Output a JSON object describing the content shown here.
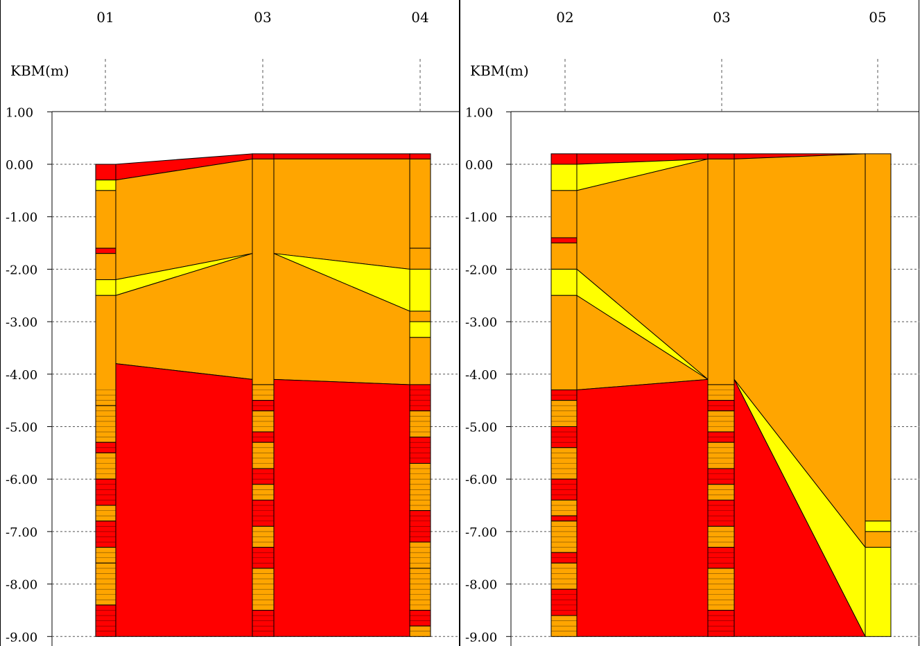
{
  "chart_data": [
    {
      "type": "geologic-cross-section",
      "ylabel": "KBM(m)",
      "yticks": [
        "1.00",
        "0.00",
        "-1.00",
        "-2.00",
        "-3.00",
        "-4.00",
        "-5.00",
        "-6.00",
        "-7.00",
        "-8.00",
        "-9.00"
      ],
      "ylim": [
        -9.0,
        1.0
      ],
      "boreholes": [
        {
          "label": "01",
          "top": 0.0,
          "layers": [
            [
              0.0,
              -0.3,
              "red"
            ],
            [
              -0.3,
              -0.5,
              "yellow"
            ],
            [
              -0.5,
              -1.6,
              "orange"
            ],
            [
              -1.6,
              -1.7,
              "red"
            ],
            [
              -1.7,
              -2.2,
              "orange"
            ],
            [
              -2.2,
              -2.5,
              "yellow"
            ],
            [
              -2.5,
              -4.6,
              "orange"
            ],
            [
              -4.6,
              -5.3,
              "orange"
            ],
            [
              -5.3,
              -5.5,
              "red"
            ],
            [
              -5.5,
              -6.0,
              "orange"
            ],
            [
              -6.0,
              -6.5,
              "red"
            ],
            [
              -6.5,
              -6.8,
              "orange"
            ],
            [
              -6.8,
              -7.3,
              "red"
            ],
            [
              -7.3,
              -7.6,
              "orange"
            ],
            [
              -7.6,
              -8.4,
              "orange"
            ],
            [
              -8.4,
              -9.0,
              "red"
            ]
          ]
        },
        {
          "label": "03",
          "top": 0.2,
          "layers": [
            [
              0.2,
              0.1,
              "red"
            ],
            [
              0.1,
              -4.2,
              "orange"
            ],
            [
              -4.2,
              -4.5,
              "orange"
            ],
            [
              -4.5,
              -4.7,
              "red"
            ],
            [
              -4.7,
              -5.1,
              "orange"
            ],
            [
              -5.1,
              -5.3,
              "red"
            ],
            [
              -5.3,
              -5.8,
              "orange"
            ],
            [
              -5.8,
              -6.1,
              "red"
            ],
            [
              -6.1,
              -6.4,
              "orange"
            ],
            [
              -6.4,
              -6.9,
              "red"
            ],
            [
              -6.9,
              -7.3,
              "orange"
            ],
            [
              -7.3,
              -7.7,
              "red"
            ],
            [
              -7.7,
              -8.5,
              "orange"
            ],
            [
              -8.5,
              -9.0,
              "red"
            ]
          ]
        },
        {
          "label": "04",
          "top": 0.2,
          "layers": [
            [
              0.2,
              0.1,
              "red"
            ],
            [
              0.1,
              -1.6,
              "orange"
            ],
            [
              -1.6,
              -2.0,
              "orange"
            ],
            [
              -2.0,
              -2.8,
              "yellow"
            ],
            [
              -2.8,
              -3.0,
              "orange"
            ],
            [
              -3.0,
              -3.3,
              "yellow"
            ],
            [
              -3.3,
              -4.2,
              "orange"
            ],
            [
              -4.2,
              -4.7,
              "red"
            ],
            [
              -4.7,
              -5.2,
              "orange"
            ],
            [
              -5.2,
              -5.7,
              "red"
            ],
            [
              -5.7,
              -6.6,
              "orange"
            ],
            [
              -6.6,
              -7.2,
              "red"
            ],
            [
              -7.2,
              -7.7,
              "orange"
            ],
            [
              -7.7,
              -8.5,
              "orange"
            ],
            [
              -8.5,
              -8.8,
              "red"
            ],
            [
              -8.8,
              -9.0,
              "orange"
            ]
          ]
        }
      ],
      "correlations": [
        {
          "between": [
            "01",
            "03"
          ],
          "color": "red",
          "left": [
            0.0,
            -0.3
          ],
          "right": [
            0.2,
            0.1
          ]
        },
        {
          "between": [
            "01",
            "03"
          ],
          "color": "orange",
          "left": [
            -0.3,
            -2.2
          ],
          "right": [
            0.1,
            -1.7
          ]
        },
        {
          "between": [
            "01",
            "03"
          ],
          "color": "yellow",
          "left": [
            -2.2,
            -2.5
          ],
          "right": [
            -1.7,
            -1.7
          ]
        },
        {
          "between": [
            "01",
            "03"
          ],
          "color": "orange",
          "left": [
            -2.5,
            -3.8
          ],
          "right": [
            -1.7,
            -4.1
          ]
        },
        {
          "between": [
            "01",
            "03"
          ],
          "color": "red",
          "left": [
            -3.8,
            -9.0
          ],
          "right": [
            -4.1,
            -9.0
          ]
        },
        {
          "between": [
            "03",
            "04"
          ],
          "color": "red",
          "left": [
            0.2,
            0.1
          ],
          "right": [
            0.2,
            0.1
          ]
        },
        {
          "between": [
            "03",
            "04"
          ],
          "color": "orange",
          "left": [
            0.1,
            -1.7
          ],
          "right": [
            0.1,
            -2.0
          ]
        },
        {
          "between": [
            "03",
            "04"
          ],
          "color": "yellow",
          "left": [
            -1.7,
            -1.7
          ],
          "right": [
            -2.0,
            -2.8
          ]
        },
        {
          "between": [
            "03",
            "04"
          ],
          "color": "orange",
          "left": [
            -1.7,
            -4.1
          ],
          "right": [
            -2.8,
            -4.2
          ]
        },
        {
          "between": [
            "03",
            "04"
          ],
          "color": "red",
          "left": [
            -4.1,
            -9.0
          ],
          "right": [
            -4.2,
            -9.0
          ]
        }
      ]
    },
    {
      "type": "geologic-cross-section",
      "ylabel": "KBM(m)",
      "yticks": [
        "1.00",
        "0.00",
        "-1.00",
        "-2.00",
        "-3.00",
        "-4.00",
        "-5.00",
        "-6.00",
        "-7.00",
        "-8.00",
        "-9.00"
      ],
      "ylim": [
        -9.0,
        1.0
      ],
      "boreholes": [
        {
          "label": "02",
          "top": 0.2,
          "layers": [
            [
              0.2,
              0.0,
              "red"
            ],
            [
              0.0,
              -0.5,
              "yellow"
            ],
            [
              -0.5,
              -1.4,
              "orange"
            ],
            [
              -1.4,
              -1.5,
              "red"
            ],
            [
              -1.5,
              -2.0,
              "orange"
            ],
            [
              -2.0,
              -2.5,
              "yellow"
            ],
            [
              -2.5,
              -4.3,
              "orange"
            ],
            [
              -4.3,
              -4.5,
              "red"
            ],
            [
              -4.5,
              -5.0,
              "orange"
            ],
            [
              -5.0,
              -5.4,
              "red"
            ],
            [
              -5.4,
              -6.0,
              "orange"
            ],
            [
              -6.0,
              -6.4,
              "red"
            ],
            [
              -6.4,
              -6.7,
              "orange"
            ],
            [
              -6.7,
              -6.8,
              "red"
            ],
            [
              -6.8,
              -7.4,
              "orange"
            ],
            [
              -7.4,
              -7.6,
              "red"
            ],
            [
              -7.6,
              -8.1,
              "orange"
            ],
            [
              -8.1,
              -8.6,
              "red"
            ],
            [
              -8.6,
              -9.0,
              "orange"
            ]
          ]
        },
        {
          "label": "03",
          "top": 0.2,
          "layers": [
            [
              0.2,
              0.1,
              "red"
            ],
            [
              0.1,
              -4.2,
              "orange"
            ],
            [
              -4.2,
              -4.5,
              "orange"
            ],
            [
              -4.5,
              -4.7,
              "red"
            ],
            [
              -4.7,
              -5.1,
              "orange"
            ],
            [
              -5.1,
              -5.3,
              "red"
            ],
            [
              -5.3,
              -5.8,
              "orange"
            ],
            [
              -5.8,
              -6.1,
              "red"
            ],
            [
              -6.1,
              -6.4,
              "orange"
            ],
            [
              -6.4,
              -6.9,
              "red"
            ],
            [
              -6.9,
              -7.3,
              "orange"
            ],
            [
              -7.3,
              -7.7,
              "red"
            ],
            [
              -7.7,
              -8.5,
              "orange"
            ],
            [
              -8.5,
              -9.0,
              "red"
            ]
          ]
        },
        {
          "label": "05",
          "top": 0.2,
          "layers": [
            [
              0.2,
              -6.8,
              "orange"
            ],
            [
              -6.8,
              -7.0,
              "yellow"
            ],
            [
              -7.0,
              -7.3,
              "orange"
            ],
            [
              -7.3,
              -9.0,
              "yellow"
            ]
          ]
        }
      ],
      "correlations": [
        {
          "between": [
            "02",
            "03"
          ],
          "color": "red",
          "left": [
            0.2,
            0.0
          ],
          "right": [
            0.2,
            0.1
          ]
        },
        {
          "between": [
            "02",
            "03"
          ],
          "color": "yellow",
          "left": [
            0.0,
            -0.5
          ],
          "right": [
            0.1,
            0.1
          ]
        },
        {
          "between": [
            "02",
            "03"
          ],
          "color": "orange",
          "left": [
            -0.5,
            -2.0
          ],
          "right": [
            0.1,
            -4.1
          ]
        },
        {
          "between": [
            "02",
            "03"
          ],
          "color": "yellow",
          "left": [
            -2.0,
            -2.5
          ],
          "right": [
            -4.1,
            -4.1
          ]
        },
        {
          "between": [
            "02",
            "03"
          ],
          "color": "orange",
          "left": [
            -2.5,
            -4.3
          ],
          "right": [
            -4.1,
            -4.1
          ]
        },
        {
          "between": [
            "02",
            "03"
          ],
          "color": "red",
          "left": [
            -4.3,
            -9.0
          ],
          "right": [
            -4.1,
            -9.0
          ]
        },
        {
          "between": [
            "03",
            "05"
          ],
          "color": "red",
          "left": [
            0.2,
            0.1
          ],
          "right": [
            0.2,
            0.2
          ]
        },
        {
          "between": [
            "03",
            "05"
          ],
          "color": "orange",
          "left": [
            0.1,
            -4.1
          ],
          "right": [
            0.2,
            -7.3
          ]
        },
        {
          "between": [
            "03",
            "05"
          ],
          "color": "yellow",
          "left": [
            -4.1,
            -4.1
          ],
          "right": [
            -7.3,
            -9.0
          ]
        },
        {
          "between": [
            "03",
            "05"
          ],
          "color": "red",
          "left": [
            -4.1,
            -9.0
          ],
          "right": [
            -9.0,
            -9.0
          ]
        }
      ]
    }
  ],
  "colors": {
    "red": "#ff0000",
    "orange": "#ffa500",
    "yellow": "#ffff00",
    "axis": "#000000",
    "grid": "#555555"
  },
  "colors_note": ""
}
